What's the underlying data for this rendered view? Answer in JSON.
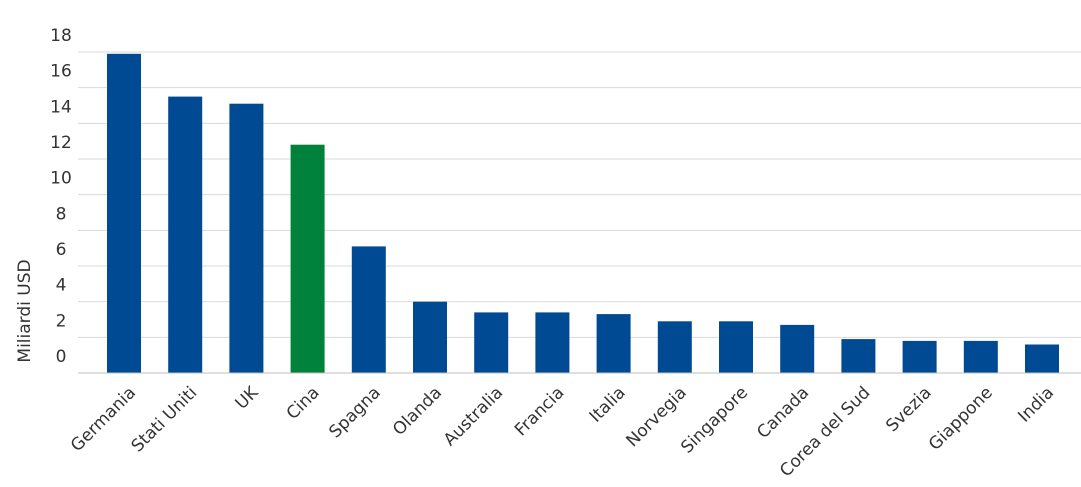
{
  "chart_data": {
    "type": "bar",
    "title": "",
    "xlabel": "",
    "ylabel": "Miliardi USD",
    "ylim": [
      0,
      18
    ],
    "yticks": [
      0,
      2,
      4,
      6,
      8,
      10,
      12,
      14,
      16,
      18
    ],
    "grid": true,
    "categories": [
      "Germania",
      "Stati Uniti",
      "UK",
      "Cina",
      "Spagna",
      "Olanda",
      "Australia",
      "Francia",
      "Italia",
      "Norvegia",
      "Singapore",
      "Canada",
      "Corea del Sud",
      "Svezia",
      "Giappone",
      "India"
    ],
    "values": [
      17.9,
      15.5,
      15.1,
      12.8,
      7.1,
      4.0,
      3.4,
      3.4,
      3.3,
      2.9,
      2.9,
      2.7,
      1.9,
      1.8,
      1.8,
      1.6
    ],
    "colors": {
      "default": "#004a93",
      "highlight": "#00823c",
      "highlight_category": "Cina"
    }
  }
}
